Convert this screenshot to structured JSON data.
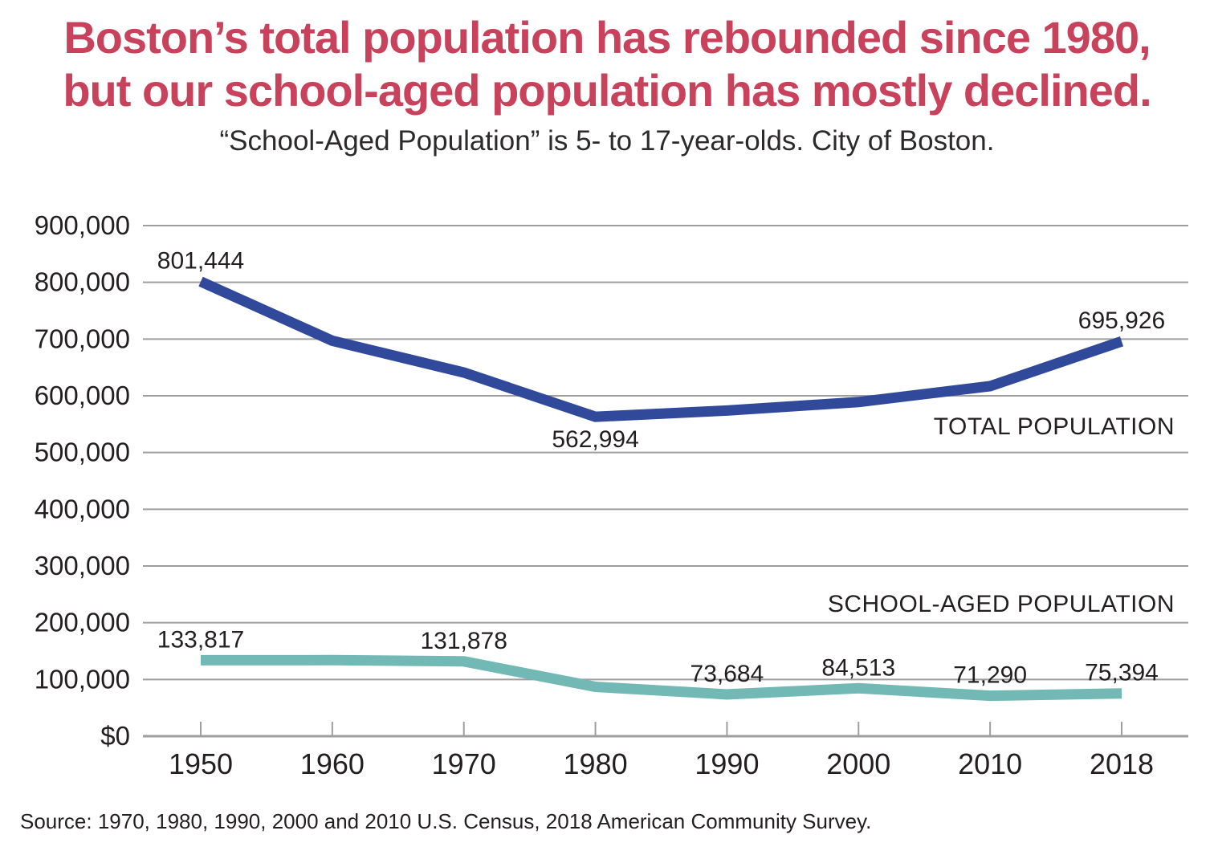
{
  "page": {
    "title_lines": [
      "Boston’s total population has rebounded since 1980,",
      "but our school-aged population has mostly declined."
    ],
    "subtitle": "“School-Aged Population” is 5- to 17-year-olds. City of Boston.",
    "source": "Source: 1970, 1980, 1990, 2000 and 2010 U.S. Census, 2018 American Community Survey."
  },
  "colors": {
    "title": "#C8425C",
    "total_population_line": "#31499B",
    "school_aged_line": "#72B9B5",
    "gridline": "#9E9E9E",
    "text": "#231F20"
  },
  "chart_data": {
    "type": "line",
    "title": "Boston's total population has rebounded since 1980, but our school-aged population has mostly declined.",
    "subtitle": "“School-Aged Population” is 5- to 17-year-olds. City of Boston.",
    "xlabel": "",
    "ylabel": "",
    "grid": true,
    "legend": "inline-labels-right",
    "categories": [
      "1950",
      "1960",
      "1970",
      "1980",
      "1990",
      "2000",
      "2010",
      "2018"
    ],
    "ylim": [
      0,
      900000
    ],
    "y_ticks": [
      {
        "label": "900,000",
        "value": 900000
      },
      {
        "label": "800,000",
        "value": 800000
      },
      {
        "label": "700,000",
        "value": 700000
      },
      {
        "label": "600,000",
        "value": 600000
      },
      {
        "label": "500,000",
        "value": 500000
      },
      {
        "label": "400,000",
        "value": 400000
      },
      {
        "label": "300,000",
        "value": 300000
      },
      {
        "label": "200,000",
        "value": 200000
      },
      {
        "label": "100,000",
        "value": 100000
      },
      {
        "label": "$0",
        "value": 0
      }
    ],
    "series": [
      {
        "name": "TOTAL POPULATION",
        "color": "#31499B",
        "values": [
          801444,
          697000,
          641000,
          562994,
          574000,
          589000,
          617000,
          695926
        ],
        "point_labels": [
          {
            "index": 0,
            "text": "801,444",
            "position": "above"
          },
          {
            "index": 3,
            "text": "562,994",
            "position": "below"
          },
          {
            "index": 7,
            "text": "695,926",
            "position": "above"
          }
        ]
      },
      {
        "name": "SCHOOL-AGED POPULATION",
        "color": "#72B9B5",
        "values": [
          133817,
          134000,
          131878,
          87000,
          73684,
          84513,
          71290,
          75394
        ],
        "point_labels": [
          {
            "index": 0,
            "text": "133,817",
            "position": "above"
          },
          {
            "index": 2,
            "text": "131,878",
            "position": "above"
          },
          {
            "index": 4,
            "text": "73,684",
            "position": "above"
          },
          {
            "index": 5,
            "text": "84,513",
            "position": "above"
          },
          {
            "index": 6,
            "text": "71,290",
            "position": "above"
          },
          {
            "index": 7,
            "text": "75,394",
            "position": "above"
          }
        ]
      }
    ]
  }
}
